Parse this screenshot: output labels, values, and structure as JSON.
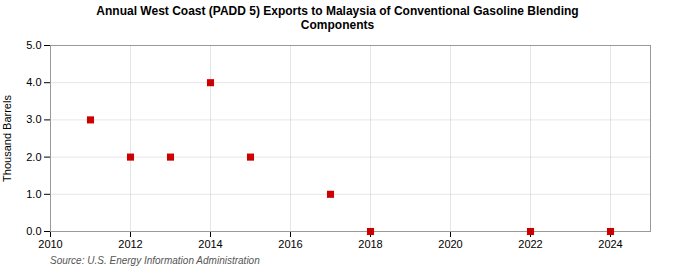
{
  "chart_data": {
    "type": "scatter",
    "title": "Annual West Coast (PADD 5) Exports to Malaysia of Conventional Gasoline Blending\nComponents",
    "ylabel": "Thousand Barrels",
    "source": "Source: U.S. Energy Information Administration",
    "x": [
      2011,
      2012,
      2013,
      2014,
      2015,
      2017,
      2018,
      2022,
      2024
    ],
    "values": [
      3.0,
      2.0,
      2.0,
      4.0,
      2.0,
      1.0,
      0.0,
      0.0,
      0.0
    ],
    "color": "#cc0000",
    "marker": "square",
    "xlim": [
      2010,
      2025
    ],
    "ylim": [
      0.0,
      5.0
    ],
    "xticks": [
      2010,
      2012,
      2014,
      2016,
      2018,
      2020,
      2022,
      2024
    ],
    "yticks": [
      {
        "value": 0,
        "label": "0.0"
      },
      {
        "value": 1,
        "label": "1.0"
      },
      {
        "value": 2,
        "label": "2.0"
      },
      {
        "value": 3,
        "label": "3.0"
      },
      {
        "value": 4,
        "label": "4.0"
      },
      {
        "value": 5,
        "label": "5.0"
      }
    ],
    "grid": true
  }
}
